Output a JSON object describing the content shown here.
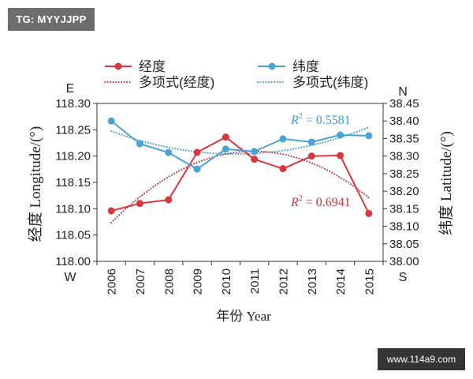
{
  "watermarks": {
    "top_left": "TG: MYYJJPP",
    "bottom_right": "www.114a9.com"
  },
  "chart_data": {
    "type": "line",
    "markers": "circle",
    "grid": false,
    "legend_position": "top",
    "categories": [
      "2006",
      "2007",
      "2008",
      "2009",
      "2010",
      "2011",
      "2012",
      "2013",
      "2014",
      "2015"
    ],
    "xlabel": "年份 Year",
    "y_left": {
      "label": "经度 Longitude/(°)",
      "range": [
        118.0,
        118.3
      ],
      "ticks": [
        "118.00",
        "118.05",
        "118.10",
        "118.15",
        "118.20",
        "118.25",
        "118.30"
      ],
      "top_direction": "E",
      "bottom_direction": "W"
    },
    "y_right": {
      "label": "纬度 Latitude/(°)",
      "range": [
        38.0,
        38.45
      ],
      "ticks": [
        "38.00",
        "38.05",
        "38.10",
        "38.15",
        "38.20",
        "38.25",
        "38.30",
        "38.35",
        "38.40",
        "38.45"
      ],
      "top_direction": "N",
      "bottom_direction": "S"
    },
    "series": [
      {
        "name": "经度",
        "axis": "left",
        "color": "#d9373d",
        "values": [
          118.096,
          118.11,
          118.117,
          118.207,
          118.236,
          118.194,
          118.176,
          118.2,
          118.201,
          118.091
        ]
      },
      {
        "name": "纬度",
        "axis": "right",
        "color": "#4ba3d3",
        "values": [
          38.4,
          38.335,
          38.31,
          38.263,
          38.32,
          38.313,
          38.349,
          38.34,
          38.36,
          38.358
        ]
      }
    ],
    "trendlines": [
      {
        "name": "多项式(经度)",
        "series": "经度",
        "kind": "polynomial",
        "order": 2,
        "color": "#c8343a",
        "r_squared": {
          "symbol": "R",
          "exponent": "2",
          "value": "= 0.6941"
        }
      },
      {
        "name": "多项式(纬度)",
        "series": "纬度",
        "kind": "polynomial",
        "order": 2,
        "color": "#3e9bd2",
        "r_squared": {
          "symbol": "R",
          "exponent": "2",
          "value": "= 0.5581"
        }
      }
    ]
  }
}
